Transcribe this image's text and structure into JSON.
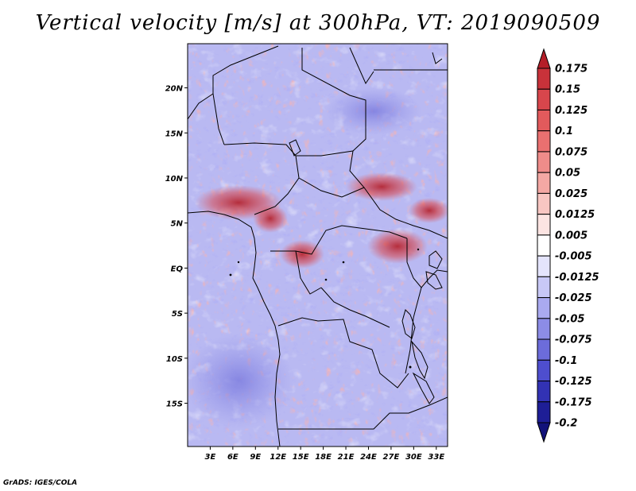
{
  "title": "Vertical velocity [m/s] at 300hPa, VT: 2019090509",
  "credit": "GrADS: IGES/COLA",
  "map": {
    "lat_labels": [
      "20N",
      "15N",
      "10N",
      "5N",
      "EQ",
      "5S",
      "10S",
      "15S"
    ],
    "lat_values": [
      20,
      15,
      10,
      5,
      0,
      -5,
      -10,
      -15
    ],
    "lon_labels": [
      "3E",
      "6E",
      "9E",
      "12E",
      "15E",
      "18E",
      "21E",
      "24E",
      "27E",
      "30E",
      "33E"
    ],
    "lon_values": [
      3,
      6,
      9,
      12,
      15,
      18,
      21,
      24,
      27,
      30,
      33
    ],
    "lon_range": [
      0,
      34.5
    ],
    "lat_range": [
      -19.8,
      24.9
    ]
  },
  "colorbar": {
    "labels": [
      "0.175",
      "0.15",
      "0.125",
      "0.1",
      "0.075",
      "0.05",
      "0.025",
      "0.0125",
      "0.005",
      "-0.005",
      "-0.0125",
      "-0.025",
      "-0.05",
      "-0.075",
      "-0.1",
      "-0.125",
      "-0.175",
      "-0.2"
    ],
    "colors": [
      "#b41e28",
      "#c8323a",
      "#d8464c",
      "#e25a5c",
      "#ea7070",
      "#ef8c8a",
      "#f4a8a4",
      "#f8c6c2",
      "#fce4e2",
      "#ffffff",
      "#e4e4fc",
      "#c8c8f6",
      "#aaaaf0",
      "#8c8ce6",
      "#6c6cda",
      "#4e4ece",
      "#3232b4",
      "#1e1e96",
      "#12127a"
    ]
  }
}
